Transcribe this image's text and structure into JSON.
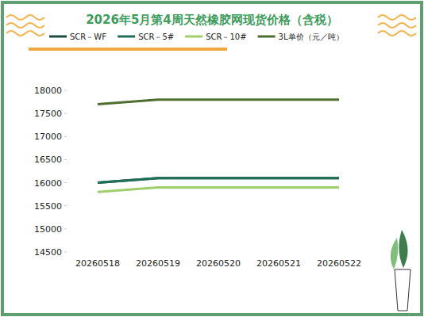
{
  "chart_data": {
    "type": "line",
    "title": "2026年5月第4周天然橡胶网现货价格（含税）",
    "categories": [
      "20260518",
      "20260519",
      "20260520",
      "20260521",
      "20260522"
    ],
    "series": [
      {
        "name": "SCR－WF",
        "color": "#1d4d3e",
        "values": [
          16000,
          16100,
          16100,
          16100,
          16100
        ]
      },
      {
        "name": "SCR－5#",
        "color": "#1f6e56",
        "values": [
          16000,
          16100,
          16100,
          16100,
          16100
        ]
      },
      {
        "name": "SCR－10#",
        "color": "#9fcf6a",
        "values": [
          15800,
          15900,
          15900,
          15900,
          15900
        ]
      },
      {
        "name": "3L单价（元／吨）",
        "color": "#4c6e2e",
        "values": [
          17700,
          17800,
          17800,
          17800,
          17800
        ]
      }
    ],
    "ylim": [
      14500,
      18000
    ],
    "yticks": [
      14500,
      15000,
      15500,
      16000,
      16500,
      17000,
      17500,
      18000
    ],
    "grid": false,
    "legend": "top"
  }
}
